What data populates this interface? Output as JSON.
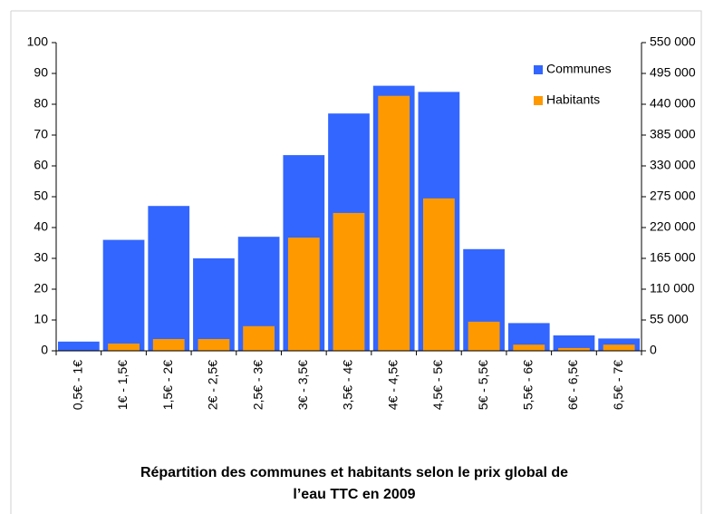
{
  "chart_data": {
    "type": "bar",
    "title": [
      "Répartition des communes et habitants selon le prix global de",
      "l’eau TTC en 2009"
    ],
    "categories": [
      "0,5€ - 1€",
      "1€ - 1,5€",
      "1,5€ - 2€",
      "2€ - 2,5€",
      "2,5€ - 3€",
      "3€ - 3,5€",
      "3,5€ - 4€",
      "4€ - 4,5€",
      "4,5€ - 5€",
      "5€ - 5,5€",
      "5,5€ - 6€",
      "6€ - 6,5€",
      "6,5€ - 7€"
    ],
    "series": [
      {
        "name": "Communes",
        "color": "#3366ff",
        "values": [
          3,
          36,
          47,
          30,
          37,
          63.5,
          77,
          86,
          84,
          33,
          9,
          5,
          4
        ]
      },
      {
        "name": "Habitants",
        "color": "#ff9900",
        "axis": "y2",
        "values": [
          0,
          13000,
          21000,
          21000,
          44000,
          202000,
          246000,
          455000,
          272000,
          52000,
          11000,
          5000,
          11000
        ]
      }
    ],
    "ylim": [
      0,
      100
    ],
    "yticks": [
      0,
      10,
      20,
      30,
      40,
      50,
      60,
      70,
      80,
      90,
      100
    ],
    "y2lim": [
      0,
      550000
    ],
    "y2ticks": [
      0,
      {
        "value": 55000,
        "label": "55 000"
      },
      {
        "value": 110000,
        "label": "110 000"
      },
      {
        "value": 165000,
        "label": "165 000"
      },
      {
        "value": 220000,
        "label": "220 000"
      },
      {
        "value": 275000,
        "label": "275 000"
      },
      {
        "value": 330000,
        "label": "330 000"
      },
      {
        "value": 385000,
        "label": "385 000"
      },
      {
        "value": 440000,
        "label": "440 000"
      },
      {
        "value": 495000,
        "label": "495 000"
      },
      {
        "value": 550000,
        "label": "550 000"
      }
    ],
    "legend": "top-right",
    "grid": false
  }
}
